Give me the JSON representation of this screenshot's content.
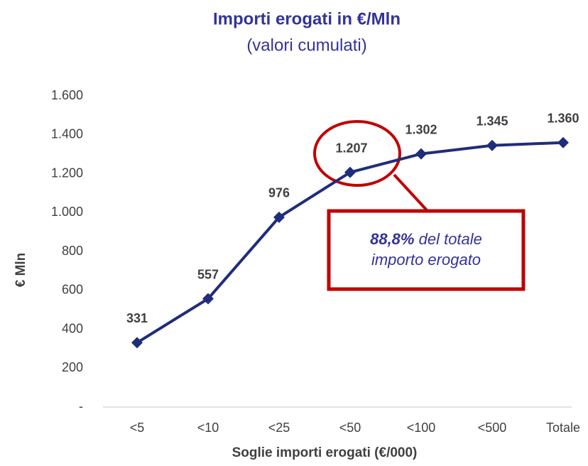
{
  "chart_data": {
    "type": "line",
    "title": "Importi erogati in €/Mln",
    "subtitle": "(valori cumulati)",
    "x_label": "Soglie importi erogati (€/000)",
    "y_label": "€ Mln",
    "categories": [
      "<5",
      "<10",
      "<25",
      "<50",
      "<100",
      "<500",
      "Totale"
    ],
    "series": [
      {
        "name": "Importi erogati",
        "color": "#1f2d7b",
        "values": [
          331,
          557,
          976,
          1207,
          1302,
          1345,
          1360
        ],
        "value_labels": [
          "331",
          "557",
          "976",
          "1.207",
          "1.302",
          "1.345",
          "1.360"
        ]
      }
    ],
    "ylim": [
      0,
      1600
    ],
    "yticks": [
      {
        "value": 0,
        "label": "-"
      },
      200,
      400,
      600,
      800,
      {
        "value": 1000,
        "label": "1.000"
      },
      {
        "value": 1200,
        "label": "1.200"
      },
      {
        "value": 1400,
        "label": "1.400"
      },
      {
        "value": 1600,
        "label": "1.600"
      }
    ],
    "grid": false,
    "legend": false,
    "annotation": {
      "highlight": "88,8%",
      "lines": [
        "del totale",
        "importo erogato"
      ],
      "color": "#c00000"
    }
  }
}
